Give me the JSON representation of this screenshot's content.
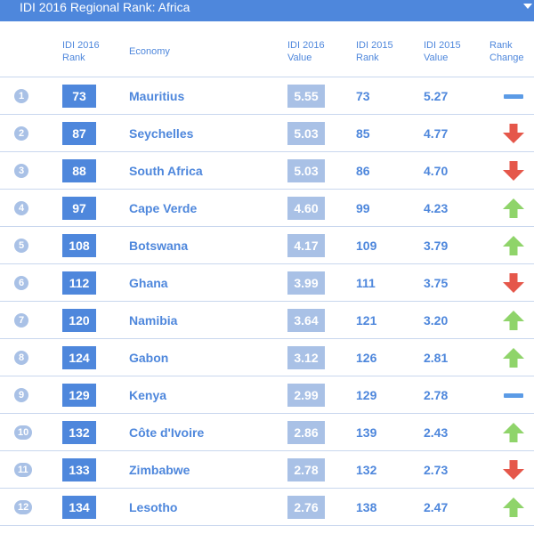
{
  "header": {
    "title": "IDI 2016 Regional Rank: Africa",
    "dropdown_icon": "caret-down-icon"
  },
  "columns": {
    "idi2016_rank": [
      "IDI 2016",
      "Rank"
    ],
    "economy": [
      "Economy"
    ],
    "idi2016_value": [
      "IDI 2016",
      "Value"
    ],
    "idi2015_rank": [
      "IDI 2015",
      "Rank"
    ],
    "idi2015_value": [
      "IDI 2015",
      "Value"
    ],
    "rank_change": [
      "Rank",
      "Change"
    ]
  },
  "colors": {
    "accent": "#4e87dc",
    "light_accent": "#a9c1e6",
    "up": "#8fd46a",
    "down": "#e5574a",
    "same": "#5b9be6"
  },
  "rows": [
    {
      "pos": "1",
      "rank2016": "73",
      "economy": "Mauritius",
      "value2016": "5.55",
      "rank2015": "73",
      "value2015": "5.27",
      "change": "same"
    },
    {
      "pos": "2",
      "rank2016": "87",
      "economy": "Seychelles",
      "value2016": "5.03",
      "rank2015": "85",
      "value2015": "4.77",
      "change": "down"
    },
    {
      "pos": "3",
      "rank2016": "88",
      "economy": "South Africa",
      "value2016": "5.03",
      "rank2015": "86",
      "value2015": "4.70",
      "change": "down"
    },
    {
      "pos": "4",
      "rank2016": "97",
      "economy": "Cape Verde",
      "value2016": "4.60",
      "rank2015": "99",
      "value2015": "4.23",
      "change": "up"
    },
    {
      "pos": "5",
      "rank2016": "108",
      "economy": "Botswana",
      "value2016": "4.17",
      "rank2015": "109",
      "value2015": "3.79",
      "change": "up"
    },
    {
      "pos": "6",
      "rank2016": "112",
      "economy": "Ghana",
      "value2016": "3.99",
      "rank2015": "111",
      "value2015": "3.75",
      "change": "down"
    },
    {
      "pos": "7",
      "rank2016": "120",
      "economy": "Namibia",
      "value2016": "3.64",
      "rank2015": "121",
      "value2015": "3.20",
      "change": "up"
    },
    {
      "pos": "8",
      "rank2016": "124",
      "economy": "Gabon",
      "value2016": "3.12",
      "rank2015": "126",
      "value2015": "2.81",
      "change": "up"
    },
    {
      "pos": "9",
      "rank2016": "129",
      "economy": "Kenya",
      "value2016": "2.99",
      "rank2015": "129",
      "value2015": "2.78",
      "change": "same"
    },
    {
      "pos": "10",
      "rank2016": "132",
      "economy": "Côte d'Ivoire",
      "value2016": "2.86",
      "rank2015": "139",
      "value2015": "2.43",
      "change": "up"
    },
    {
      "pos": "11",
      "rank2016": "133",
      "economy": "Zimbabwe",
      "value2016": "2.78",
      "rank2015": "132",
      "value2015": "2.73",
      "change": "down"
    },
    {
      "pos": "12",
      "rank2016": "134",
      "economy": "Lesotho",
      "value2016": "2.76",
      "rank2015": "138",
      "value2015": "2.47",
      "change": "up"
    }
  ]
}
